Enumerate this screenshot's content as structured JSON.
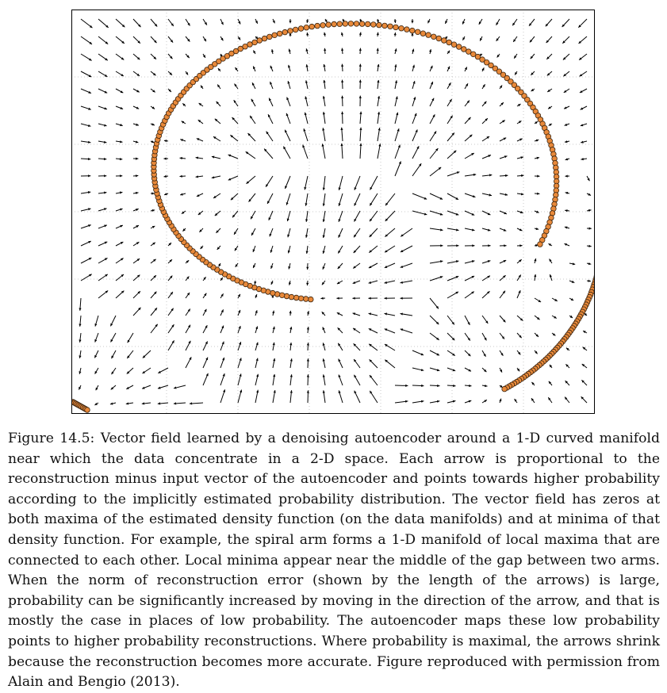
{
  "figure": {
    "plot_style": {
      "point_color": "#e8893a",
      "point_edge_color": "#3a2410",
      "arrow_color": "#000000",
      "axes_color": "#000000",
      "grid": true
    }
  },
  "caption": {
    "label": "Figure 14.5:",
    "text": "Vector field learned by a denoising autoencoder around a 1-D curved manifold near which the data concentrate in a 2-D space. Each arrow is proportional to the reconstruction minus input vector of the autoencoder and points towards higher probability according to the implicitly estimated probability distribution. The vector field has zeros at both maxima of the estimated density function (on the data manifolds) and at minima of that density function. For example, the spiral arm forms a 1-D manifold of local maxima that are connected to each other. Local minima appear near the middle of the gap between two arms. When the norm of reconstruction error (shown by the length of the arrows) is large, probability can be significantly increased by moving in the direction of the arrow, and that is mostly the case in places of low probability. The autoencoder maps these low probability points to higher probability reconstructions. Where probability is maximal, the arrows shrink because the reconstruction becomes more accurate. Figure reproduced with permission from Alain and Bengio (2013)."
  }
}
